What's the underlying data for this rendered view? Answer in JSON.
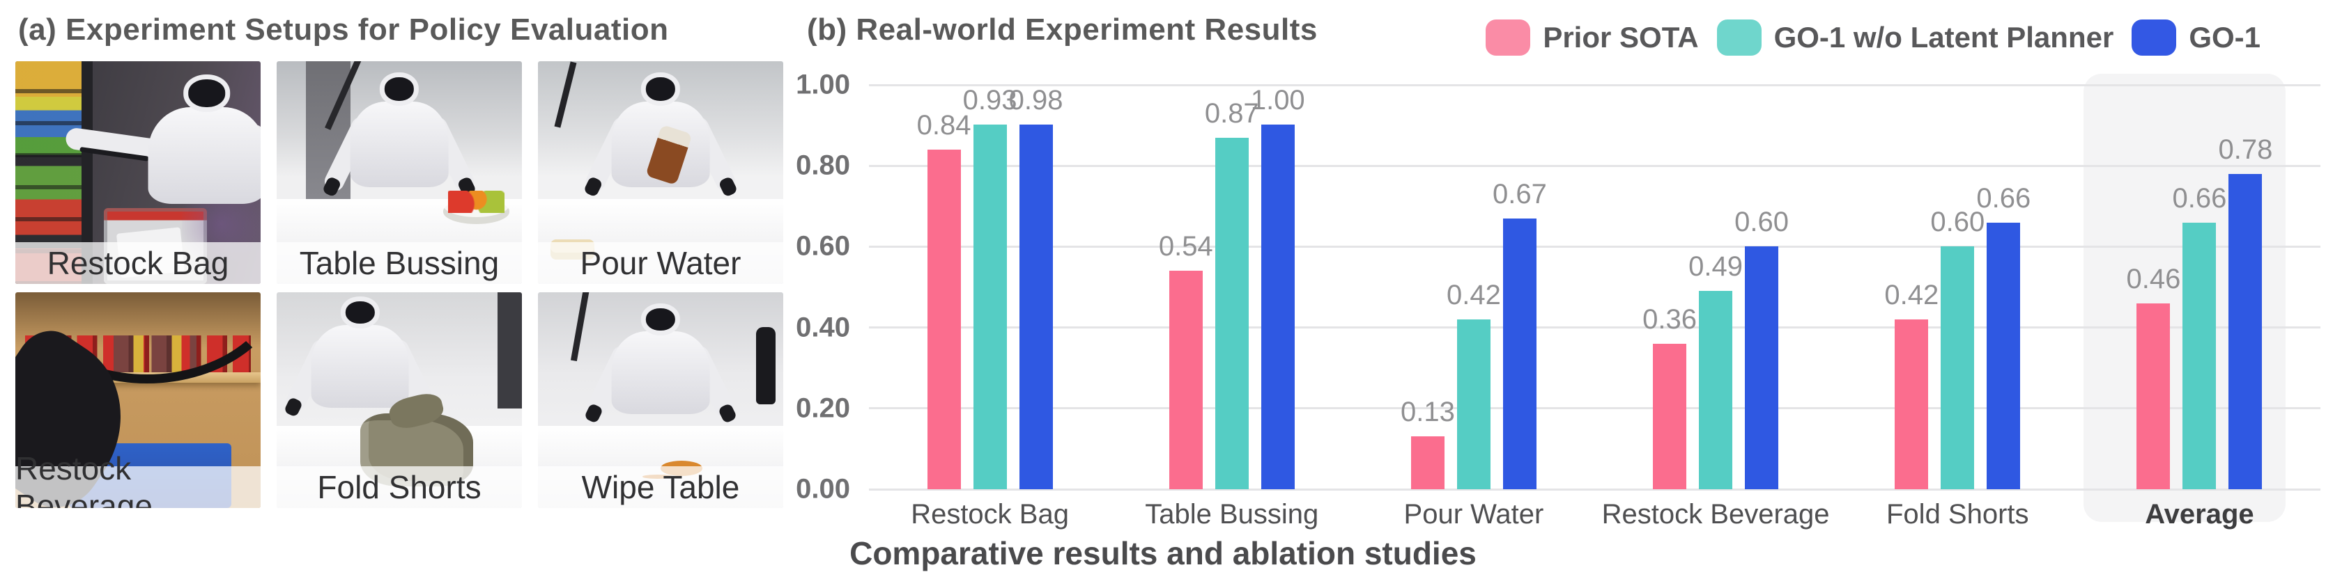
{
  "panel_a": {
    "title": "(a) Experiment Setups for Policy Evaluation",
    "photos": [
      {
        "label": "Restock Bag",
        "scene": "restock-bag"
      },
      {
        "label": "Table Bussing",
        "scene": "table-bussing"
      },
      {
        "label": "Pour Water",
        "scene": "pour-water"
      },
      {
        "label": "Restock Beverage",
        "scene": "restock-beverage"
      },
      {
        "label": "Fold Shorts",
        "scene": "fold-shorts"
      },
      {
        "label": "Wipe Table",
        "scene": "wipe-table"
      }
    ]
  },
  "panel_b": {
    "title": "(b) Real-world Experiment Results",
    "legend": [
      {
        "label": "Prior SOTA",
        "color": "#FA8CA6"
      },
      {
        "label": "GO-1 w/o Latent Planner",
        "color": "#6FD6CC"
      },
      {
        "label": "GO-1",
        "color": "#3358E4"
      }
    ],
    "caption": "Comparative results and ablation studies"
  },
  "chart_data": {
    "type": "bar",
    "title": "(b) Real-world Experiment Results",
    "categories": [
      "Restock Bag",
      "Table Bussing",
      "Pour Water",
      "Restock Beverage",
      "Fold Shorts",
      "Average"
    ],
    "series": [
      {
        "name": "Prior SOTA",
        "color": "#FB6D8E",
        "values": [
          0.84,
          0.54,
          0.13,
          0.36,
          0.42,
          0.46
        ]
      },
      {
        "name": "GO-1 w/o Latent Planner",
        "color": "#55CDC4",
        "values": [
          0.93,
          0.87,
          0.42,
          0.49,
          0.6,
          0.66
        ]
      },
      {
        "name": "GO-1",
        "color": "#2F58E2",
        "values": [
          0.98,
          1.0,
          0.67,
          0.6,
          0.66,
          0.78
        ]
      }
    ],
    "xlabel": "",
    "ylabel": "",
    "ylim": [
      0,
      1.0
    ],
    "yticks": [
      0.0,
      0.2,
      0.4,
      0.6,
      0.8,
      1.0
    ],
    "grid": true,
    "gridline_color": "#E4E4E6",
    "legend_position": "top-right",
    "highlight_category": "Average",
    "highlight_color": "#F4F4F5",
    "value_label_decimals": 2
  }
}
